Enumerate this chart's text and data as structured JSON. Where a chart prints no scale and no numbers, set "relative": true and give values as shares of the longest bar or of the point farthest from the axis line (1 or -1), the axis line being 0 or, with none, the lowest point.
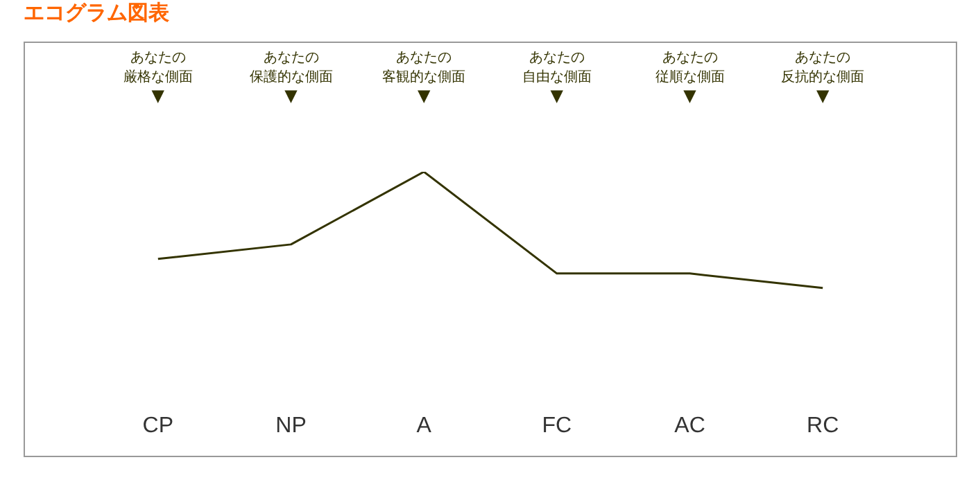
{
  "chart_data": {
    "type": "line",
    "title": "エコグラム図表",
    "relative": true,
    "categories": [
      "CP",
      "NP",
      "A",
      "FC",
      "AC",
      "RC"
    ],
    "series": [
      {
        "color": "#333300",
        "values": [
          0.25,
          0.375,
          1,
          0.125,
          0.125,
          0
        ]
      }
    ],
    "annotations": [
      "あなたの",
      "厳格な側面",
      "▼",
      "あなたの",
      "保護的な側面",
      "▼",
      "あなたの",
      "客観的な側面",
      "▼",
      "あなたの",
      "自由な側面",
      "▼",
      "あなたの",
      "従順な側面",
      "▼",
      "あなたの",
      "反抗的な側面",
      "▼"
    ],
    "grid": false,
    "legend": false,
    "marker": "none",
    "line_style": "solid"
  }
}
